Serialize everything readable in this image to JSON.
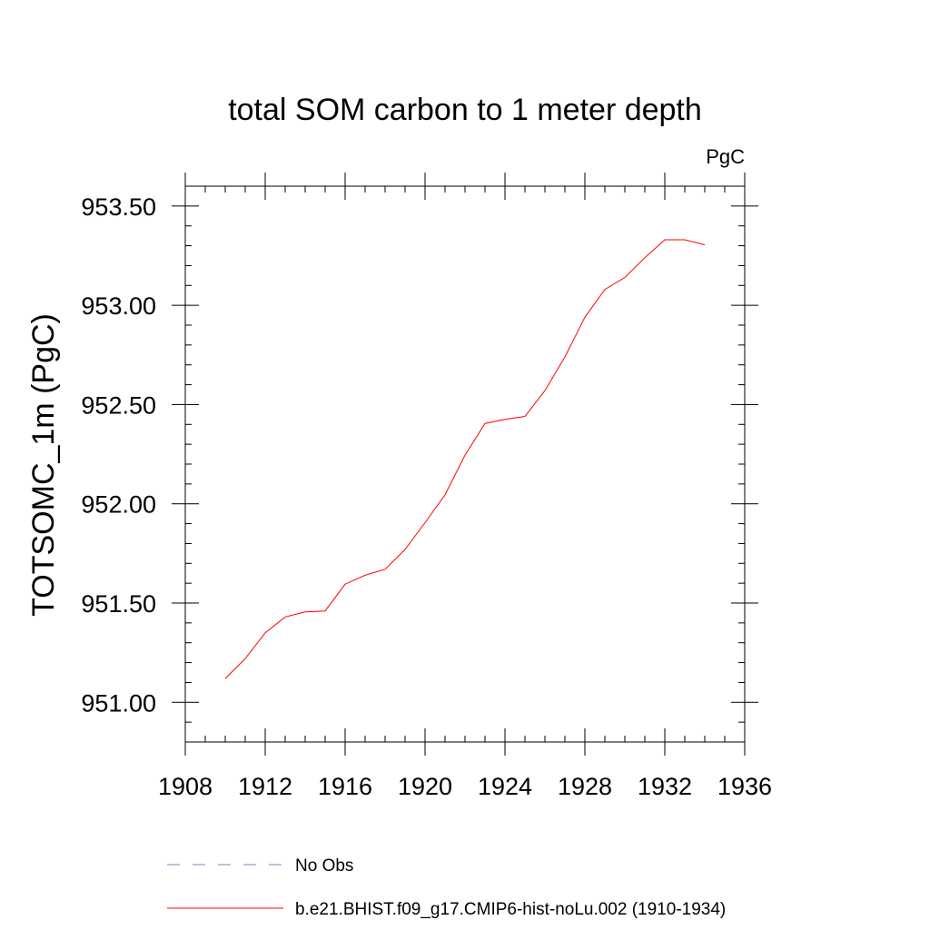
{
  "chart_data": {
    "type": "line",
    "title": "total SOM carbon to 1 meter depth",
    "units": "PgC",
    "ylabel": "TOTSOMC_1m  (PgC)",
    "xlabel": "",
    "xlim": [
      1908,
      1936
    ],
    "ylim": [
      950.8,
      953.6
    ],
    "xticks": [
      1908,
      1912,
      1916,
      1920,
      1924,
      1928,
      1932,
      1936
    ],
    "xtick_labels": [
      "1908",
      "1912",
      "1916",
      "1920",
      "1924",
      "1928",
      "1932",
      "1936"
    ],
    "yticks": [
      951.0,
      951.5,
      952.0,
      952.5,
      953.0,
      953.5
    ],
    "ytick_labels": [
      "951.00",
      "951.50",
      "952.00",
      "952.50",
      "953.00",
      "953.50"
    ],
    "grid": false,
    "legend_position": "bottom",
    "series": [
      {
        "name": "b.e21.BHIST.f09_g17.CMIP6-hist-noLu.002 (1910-1934)",
        "color": "#ff0000",
        "style": "solid",
        "x": [
          1910,
          1911,
          1912,
          1913,
          1914,
          1915,
          1916,
          1917,
          1918,
          1919,
          1920,
          1921,
          1922,
          1923,
          1924,
          1925,
          1926,
          1927,
          1928,
          1929,
          1930,
          1931,
          1932,
          1933,
          1934
        ],
        "y": [
          951.12,
          951.22,
          951.35,
          951.43,
          951.455,
          951.46,
          951.595,
          951.64,
          951.67,
          951.77,
          951.905,
          952.045,
          952.245,
          952.405,
          952.425,
          952.44,
          952.57,
          952.74,
          952.94,
          953.08,
          953.14,
          953.24,
          953.33,
          953.33,
          953.305
        ]
      }
    ],
    "legend": [
      {
        "label": "No Obs",
        "color": "#8080c0",
        "style": "dashed"
      },
      {
        "label": "b.e21.BHIST.f09_g17.CMIP6-hist-noLu.002 (1910-1934)",
        "color": "#ff0000",
        "style": "solid"
      }
    ]
  }
}
